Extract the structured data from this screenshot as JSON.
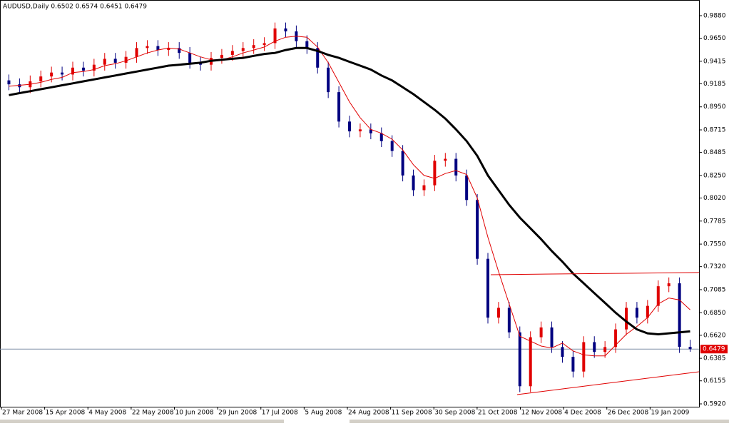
{
  "chart_data": {
    "type": "candlestick",
    "title": "AUDUSD,Daily  0.6502 0.6574 0.6451 0.6479",
    "xlabels": [
      "27 Mar 2008",
      "15 Apr 2008",
      "4 May 2008",
      "22 May 2008",
      "10 Jun 2008",
      "29 Jun 2008",
      "17 Jul 2008",
      "5 Aug 2008",
      "24 Aug 2008",
      "11 Sep 2008",
      "30 Sep 2008",
      "21 Oct 2008",
      "12 Nov 2008",
      "4 Dec 2008",
      "26 Dec 2008",
      "19 Jan 2009"
    ],
    "open": [
      0.922,
      0.918,
      0.915,
      0.921,
      0.926,
      0.93,
      0.928,
      0.935,
      0.932,
      0.938,
      0.944,
      0.94,
      0.946,
      0.955,
      0.957,
      0.953,
      0.955,
      0.95,
      0.94,
      0.938,
      0.945,
      0.948,
      0.952,
      0.955,
      0.958,
      0.96,
      0.975,
      0.972,
      0.962,
      0.955,
      0.935,
      0.91,
      0.88,
      0.87,
      0.872,
      0.868,
      0.86,
      0.85,
      0.825,
      0.81,
      0.815,
      0.84,
      0.842,
      0.825,
      0.8,
      0.74,
      0.68,
      0.69,
      0.665,
      0.61,
      0.66,
      0.67,
      0.65,
      0.64,
      0.625,
      0.655,
      0.645,
      0.65,
      0.668,
      0.69,
      0.68,
      0.692,
      0.712,
      0.715,
      0.6502
    ],
    "high": [
      0.928,
      0.924,
      0.927,
      0.932,
      0.936,
      0.936,
      0.941,
      0.941,
      0.944,
      0.95,
      0.95,
      0.952,
      0.961,
      0.963,
      0.963,
      0.961,
      0.961,
      0.956,
      0.946,
      0.951,
      0.954,
      0.958,
      0.961,
      0.964,
      0.966,
      0.981,
      0.981,
      0.978,
      0.968,
      0.961,
      0.941,
      0.916,
      0.886,
      0.878,
      0.878,
      0.874,
      0.866,
      0.856,
      0.831,
      0.821,
      0.846,
      0.848,
      0.848,
      0.831,
      0.806,
      0.746,
      0.696,
      0.696,
      0.671,
      0.666,
      0.676,
      0.676,
      0.656,
      0.646,
      0.661,
      0.661,
      0.656,
      0.674,
      0.696,
      0.696,
      0.698,
      0.718,
      0.721,
      0.721,
      0.6574
    ],
    "low": [
      0.912,
      0.909,
      0.909,
      0.915,
      0.92,
      0.922,
      0.922,
      0.926,
      0.926,
      0.932,
      0.934,
      0.934,
      0.94,
      0.949,
      0.947,
      0.947,
      0.944,
      0.934,
      0.932,
      0.932,
      0.939,
      0.942,
      0.946,
      0.949,
      0.952,
      0.954,
      0.966,
      0.956,
      0.949,
      0.929,
      0.904,
      0.874,
      0.864,
      0.864,
      0.862,
      0.854,
      0.844,
      0.819,
      0.804,
      0.804,
      0.809,
      0.834,
      0.819,
      0.794,
      0.734,
      0.674,
      0.674,
      0.659,
      0.604,
      0.604,
      0.654,
      0.644,
      0.634,
      0.619,
      0.619,
      0.639,
      0.639,
      0.644,
      0.662,
      0.674,
      0.674,
      0.686,
      0.706,
      0.644,
      0.6451
    ],
    "close": [
      0.918,
      0.915,
      0.921,
      0.926,
      0.93,
      0.928,
      0.935,
      0.932,
      0.938,
      0.944,
      0.94,
      0.946,
      0.955,
      0.957,
      0.953,
      0.955,
      0.95,
      0.94,
      0.938,
      0.945,
      0.948,
      0.952,
      0.955,
      0.958,
      0.96,
      0.975,
      0.972,
      0.962,
      0.955,
      0.935,
      0.91,
      0.88,
      0.87,
      0.872,
      0.868,
      0.86,
      0.85,
      0.825,
      0.81,
      0.815,
      0.84,
      0.842,
      0.825,
      0.8,
      0.74,
      0.68,
      0.69,
      0.665,
      0.61,
      0.66,
      0.67,
      0.65,
      0.64,
      0.625,
      0.655,
      0.645,
      0.65,
      0.668,
      0.69,
      0.68,
      0.692,
      0.712,
      0.715,
      0.6502,
      0.6479
    ],
    "up_color": "#e00000",
    "down_color": "#000080",
    "series": [
      {
        "color": "#e00000",
        "width": 1,
        "values": [
          0.916,
          0.917,
          0.918,
          0.92,
          0.923,
          0.925,
          0.93,
          0.931,
          0.933,
          0.937,
          0.939,
          0.942,
          0.946,
          0.95,
          0.953,
          0.955,
          0.954,
          0.95,
          0.946,
          0.943,
          0.943,
          0.946,
          0.95,
          0.953,
          0.956,
          0.962,
          0.966,
          0.967,
          0.966,
          0.956,
          0.94,
          0.92,
          0.9,
          0.884,
          0.872,
          0.868,
          0.862,
          0.851,
          0.836,
          0.825,
          0.822,
          0.827,
          0.83,
          0.826,
          0.802,
          0.762,
          0.727,
          0.694,
          0.661,
          0.656,
          0.651,
          0.649,
          0.654,
          0.646,
          0.642,
          0.641,
          0.641,
          0.652,
          0.663,
          0.671,
          0.68,
          0.694,
          0.7,
          0.698,
          0.688
        ]
      },
      {
        "color": "#000000",
        "width": 3,
        "values": [
          0.907,
          0.909,
          0.911,
          0.913,
          0.915,
          0.917,
          0.919,
          0.921,
          0.923,
          0.925,
          0.927,
          0.929,
          0.931,
          0.933,
          0.935,
          0.937,
          0.938,
          0.939,
          0.94,
          0.942,
          0.943,
          0.944,
          0.945,
          0.947,
          0.949,
          0.95,
          0.953,
          0.955,
          0.955,
          0.952,
          0.948,
          0.945,
          0.941,
          0.937,
          0.933,
          0.927,
          0.922,
          0.915,
          0.908,
          0.9,
          0.892,
          0.883,
          0.872,
          0.86,
          0.845,
          0.825,
          0.81,
          0.795,
          0.782,
          0.771,
          0.76,
          0.748,
          0.737,
          0.725,
          0.715,
          0.705,
          0.695,
          0.685,
          0.676,
          0.668,
          0.664,
          0.663,
          0.664,
          0.665,
          0.666
        ]
      }
    ],
    "trendlines": [
      {
        "color": "#e00000",
        "values": [
          0.7238,
          0.726
        ]
      },
      {
        "color": "#e00000",
        "values": [
          0.6015,
          0.6248
        ]
      }
    ],
    "last_price": 0.6479,
    "last_price_color": "#e00000",
    "ylim": [
      0.5891,
      1.004
    ],
    "yticks": [
      {
        "value": 0.988,
        "label": "0.9880"
      },
      {
        "value": 0.965,
        "label": "0.9650"
      },
      0.9415,
      0.9185,
      {
        "value": 0.895,
        "label": "0.8950"
      },
      0.8715,
      0.8485,
      {
        "value": 0.825,
        "label": "0.8250"
      },
      {
        "value": 0.802,
        "label": "0.8020"
      },
      0.7785,
      {
        "value": 0.755,
        "label": "0.7550"
      },
      {
        "value": 0.732,
        "label": "0.7320"
      },
      0.7085,
      {
        "value": 0.685,
        "label": "0.6850"
      },
      {
        "value": 0.662,
        "label": "0.6620"
      },
      0.6385,
      0.6155,
      {
        "value": 0.592,
        "label": "0.5920"
      }
    ]
  }
}
